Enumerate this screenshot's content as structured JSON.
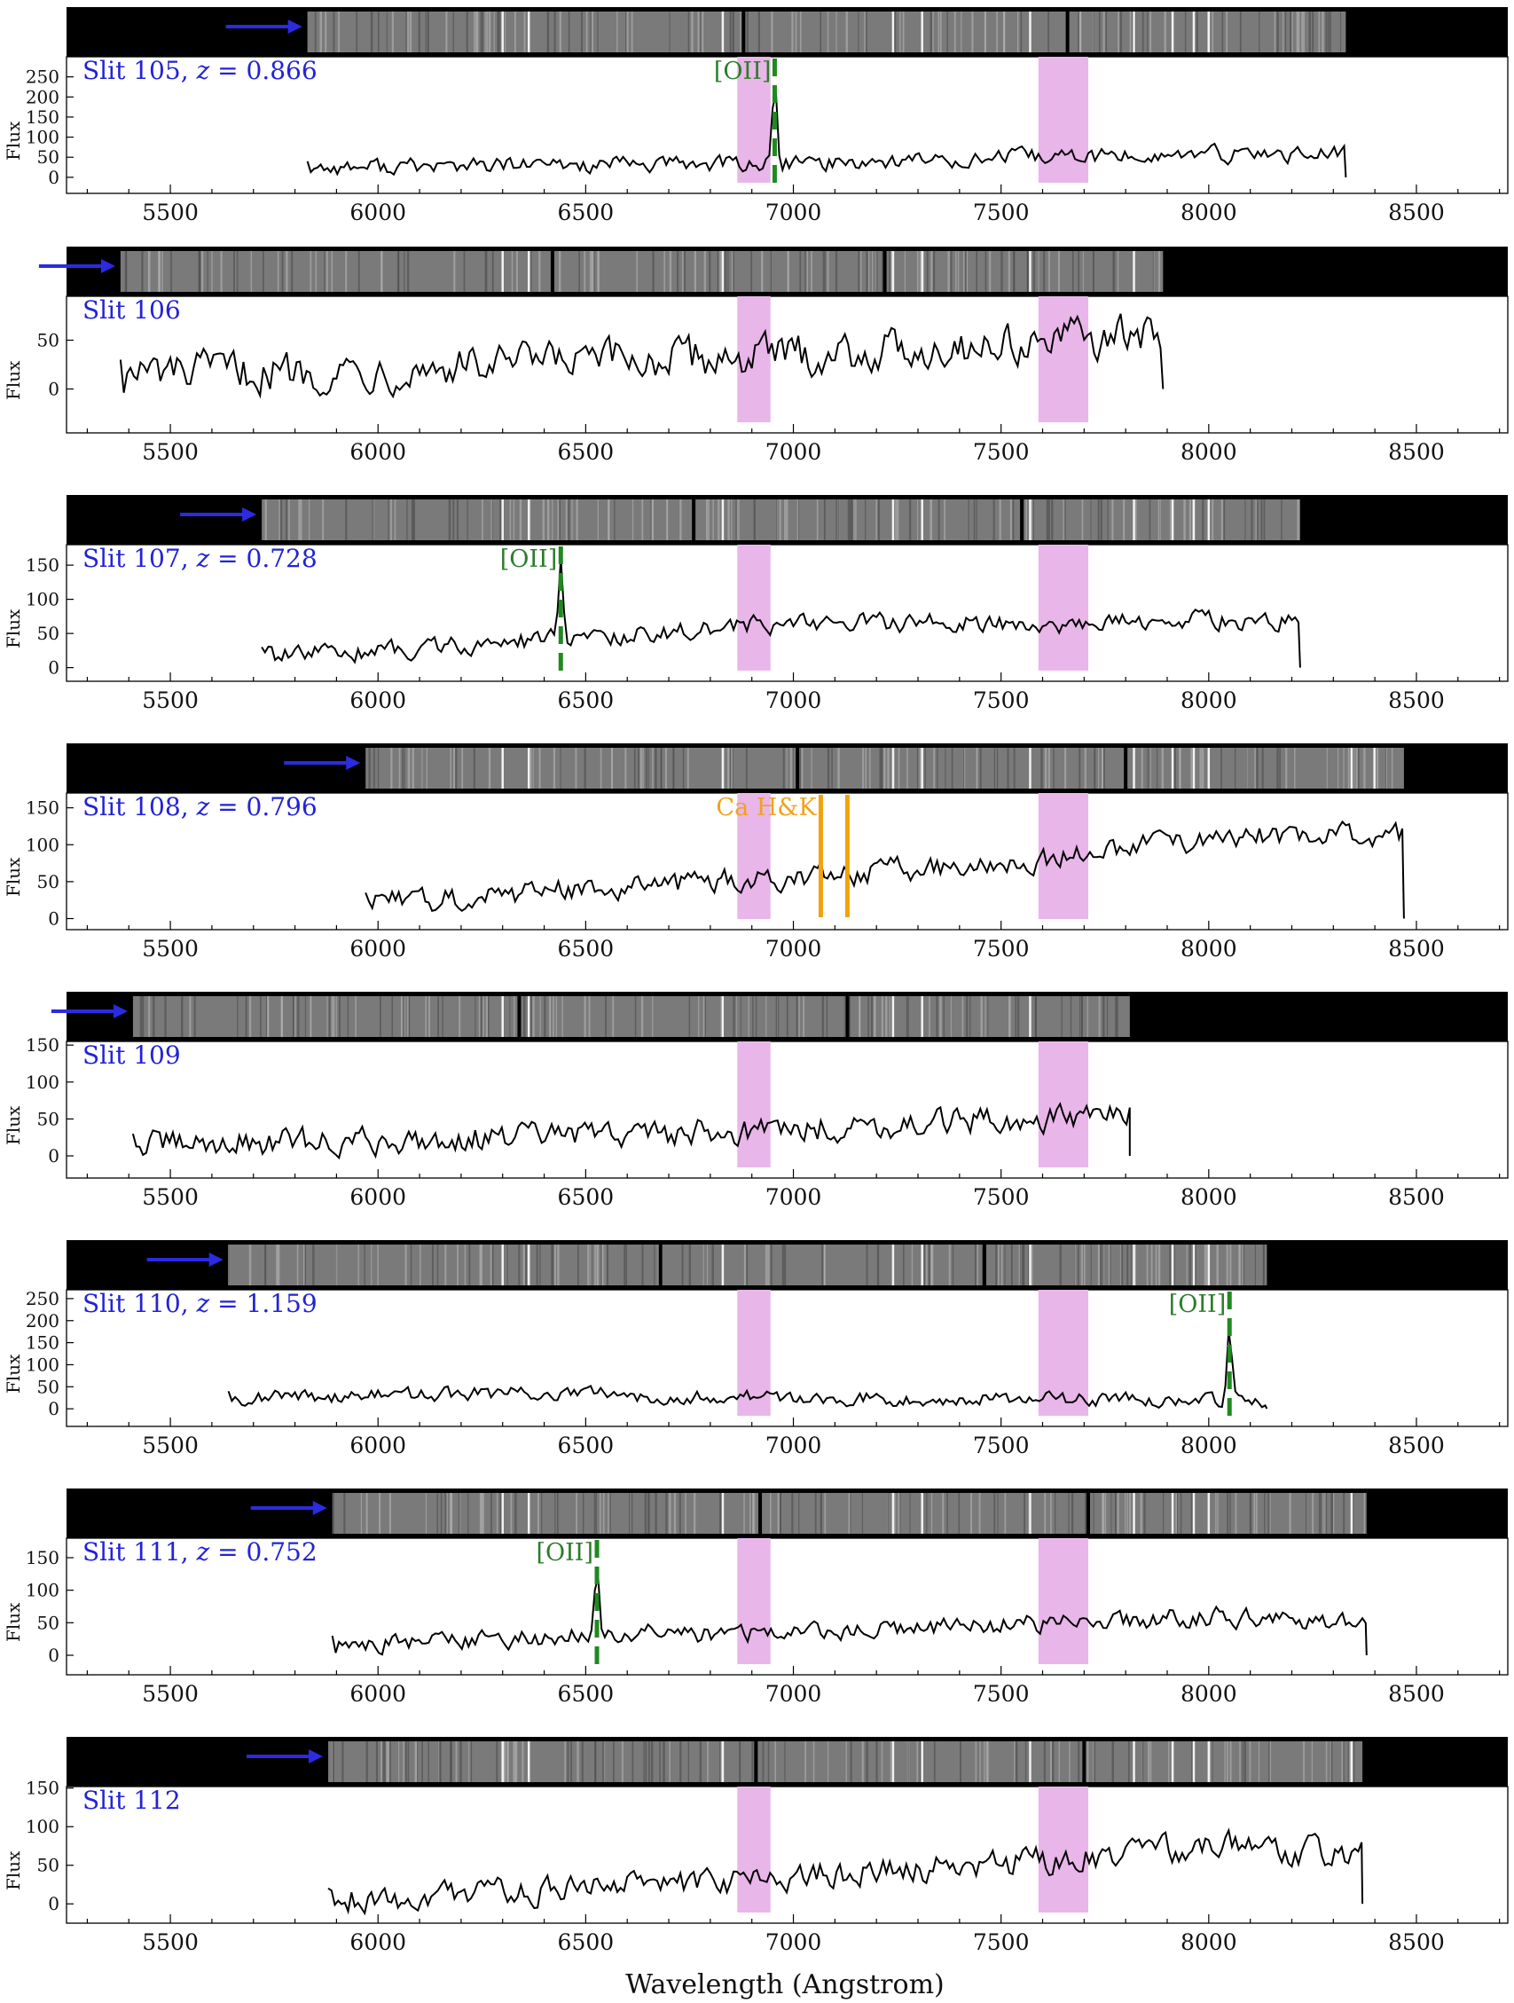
{
  "figure": {
    "xlabel": "Wavelength (Angstrom)",
    "ylabel": "Flux",
    "xlim": [
      5250,
      8720
    ],
    "x_ticks": [
      5500,
      6000,
      6500,
      7000,
      7500,
      8000,
      8500
    ],
    "telluric_bands": [
      [
        6865,
        6945
      ],
      [
        7590,
        7710
      ]
    ],
    "colors": {
      "spectrum": "#000000",
      "telluric": "#e9b6e9",
      "slit_label": "#2323d6",
      "arrow": "#2b2be0",
      "oii": "#1f8a1f",
      "cahk": "#f2a20c",
      "strip_bg": "#000000"
    }
  },
  "chart_data": [
    {
      "type": "line",
      "slit": "Slit 105",
      "z": "0.866",
      "ylim": [
        -40,
        300
      ],
      "y_ticks": [
        0,
        50,
        100,
        150,
        200,
        250
      ],
      "x_range": [
        5830,
        8330
      ],
      "segment_breaks": [
        6880,
        7660
      ],
      "lines": [
        {
          "label": "[OII]",
          "wavelength": 6955,
          "type": "oii",
          "peak": 270
        }
      ],
      "base_trend": [
        [
          5830,
          25
        ],
        [
          6500,
          30
        ],
        [
          7000,
          35
        ],
        [
          7600,
          50
        ],
        [
          8330,
          60
        ]
      ],
      "noise": 18
    },
    {
      "type": "line",
      "slit": "Slit 106",
      "z": "",
      "ylim": [
        -45,
        95
      ],
      "y_ticks": [
        0,
        50
      ],
      "x_range": [
        5380,
        7890
      ],
      "segment_breaks": [
        6420,
        7220
      ],
      "lines": [],
      "base_trend": [
        [
          5380,
          15
        ],
        [
          6000,
          20
        ],
        [
          7000,
          35
        ],
        [
          7890,
          55
        ]
      ],
      "noise": 18
    },
    {
      "type": "line",
      "slit": "Slit 107",
      "z": "0.728",
      "ylim": [
        -20,
        180
      ],
      "y_ticks": [
        0,
        50,
        100,
        150
      ],
      "x_range": [
        5720,
        8220
      ],
      "segment_breaks": [
        6760,
        7550
      ],
      "lines": [
        {
          "label": "[OII]",
          "wavelength": 6440,
          "type": "oii",
          "peak": 160
        }
      ],
      "base_trend": [
        [
          5720,
          15
        ],
        [
          6400,
          40
        ],
        [
          7000,
          65
        ],
        [
          7600,
          65
        ],
        [
          8220,
          70
        ]
      ],
      "noise": 12
    },
    {
      "type": "line",
      "slit": "Slit 108",
      "z": "0.796",
      "ylim": [
        -15,
        170
      ],
      "y_ticks": [
        0,
        50,
        100,
        150
      ],
      "x_range": [
        5970,
        8470
      ],
      "segment_breaks": [
        7010,
        7800
      ],
      "lines": [
        {
          "label": "Ca H&K",
          "wavelength": 7066,
          "type": "cahk"
        },
        {
          "label": "",
          "wavelength": 7130,
          "type": "cahk"
        }
      ],
      "base_trend": [
        [
          5970,
          20
        ],
        [
          6500,
          40
        ],
        [
          7000,
          55
        ],
        [
          7600,
          80
        ],
        [
          8100,
          115
        ],
        [
          8470,
          110
        ]
      ],
      "noise": 14
    },
    {
      "type": "line",
      "slit": "Slit 109",
      "z": "",
      "ylim": [
        -30,
        155
      ],
      "y_ticks": [
        0,
        50,
        100,
        150
      ],
      "x_range": [
        5410,
        7810
      ],
      "segment_breaks": [
        6340,
        7130
      ],
      "lines": [],
      "base_trend": [
        [
          5410,
          15
        ],
        [
          6000,
          20
        ],
        [
          6900,
          35
        ],
        [
          7810,
          55
        ]
      ],
      "noise": 16
    },
    {
      "type": "line",
      "slit": "Slit 110",
      "z": "1.159",
      "ylim": [
        -40,
        270
      ],
      "y_ticks": [
        0,
        50,
        100,
        150,
        200,
        250
      ],
      "x_range": [
        5640,
        8140
      ],
      "segment_breaks": [
        6680,
        7460
      ],
      "lines": [
        {
          "label": "[OII]",
          "wavelength": 8050,
          "type": "oii",
          "peak": 210
        }
      ],
      "base_trend": [
        [
          5640,
          25
        ],
        [
          6300,
          35
        ],
        [
          7000,
          25
        ],
        [
          8140,
          20
        ]
      ],
      "noise": 14
    },
    {
      "type": "line",
      "slit": "Slit 111",
      "z": "0.752",
      "ylim": [
        -30,
        180
      ],
      "y_ticks": [
        0,
        50,
        100,
        150
      ],
      "x_range": [
        5890,
        8380
      ],
      "segment_breaks": [
        6920,
        7710
      ],
      "lines": [
        {
          "label": "[OII]",
          "wavelength": 6527,
          "type": "oii",
          "peak": 150
        }
      ],
      "base_trend": [
        [
          5890,
          15
        ],
        [
          6500,
          30
        ],
        [
          7300,
          40
        ],
        [
          8000,
          60
        ],
        [
          8380,
          45
        ]
      ],
      "noise": 13
    },
    {
      "type": "line",
      "slit": "Slit 112",
      "z": "",
      "ylim": [
        -25,
        152
      ],
      "y_ticks": [
        0,
        50,
        100,
        150
      ],
      "x_range": [
        5880,
        8370
      ],
      "segment_breaks": [
        6910,
        7700
      ],
      "lines": [],
      "base_trend": [
        [
          5880,
          5
        ],
        [
          6500,
          20
        ],
        [
          7100,
          40
        ],
        [
          7600,
          55
        ],
        [
          8000,
          75
        ],
        [
          8370,
          65
        ]
      ],
      "noise": 16
    }
  ]
}
